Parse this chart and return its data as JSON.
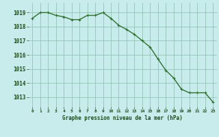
{
  "x": [
    0,
    1,
    2,
    3,
    4,
    5,
    6,
    7,
    8,
    9,
    10,
    11,
    12,
    13,
    14,
    15,
    16,
    17,
    18,
    19,
    20,
    21,
    22,
    23
  ],
  "y": [
    1018.6,
    1019.0,
    1019.0,
    1018.8,
    1018.7,
    1018.5,
    1018.5,
    1018.8,
    1018.8,
    1019.0,
    1018.6,
    1018.1,
    1017.8,
    1017.45,
    1017.0,
    1016.55,
    1015.7,
    1014.9,
    1014.35,
    1013.55,
    1013.3,
    1013.3,
    1013.3,
    1012.65
  ],
  "line_color": "#2d6e2d",
  "marker_color": "#2d6e2d",
  "bg_color": "#c8ecec",
  "grid_color": "#88bbaa",
  "xlabel": "Graphe pression niveau de la mer (hPa)",
  "xlabel_color": "#1a4a1a",
  "tick_color": "#1a4a1a",
  "ylim": [
    1012.3,
    1019.7
  ],
  "yticks": [
    1013,
    1014,
    1015,
    1016,
    1017,
    1018,
    1019
  ],
  "xticks": [
    0,
    1,
    2,
    3,
    4,
    5,
    6,
    7,
    8,
    9,
    10,
    11,
    12,
    13,
    14,
    15,
    16,
    17,
    18,
    19,
    20,
    21,
    22,
    23
  ],
  "xtick_labels": [
    "0",
    "1",
    "2",
    "3",
    "4",
    "5",
    "6",
    "7",
    "8",
    "9",
    "10",
    "11",
    "12",
    "13",
    "14",
    "15",
    "16",
    "17",
    "18",
    "19",
    "20",
    "21",
    "22",
    "23"
  ],
  "line_width": 1.0,
  "marker_size": 2.5
}
